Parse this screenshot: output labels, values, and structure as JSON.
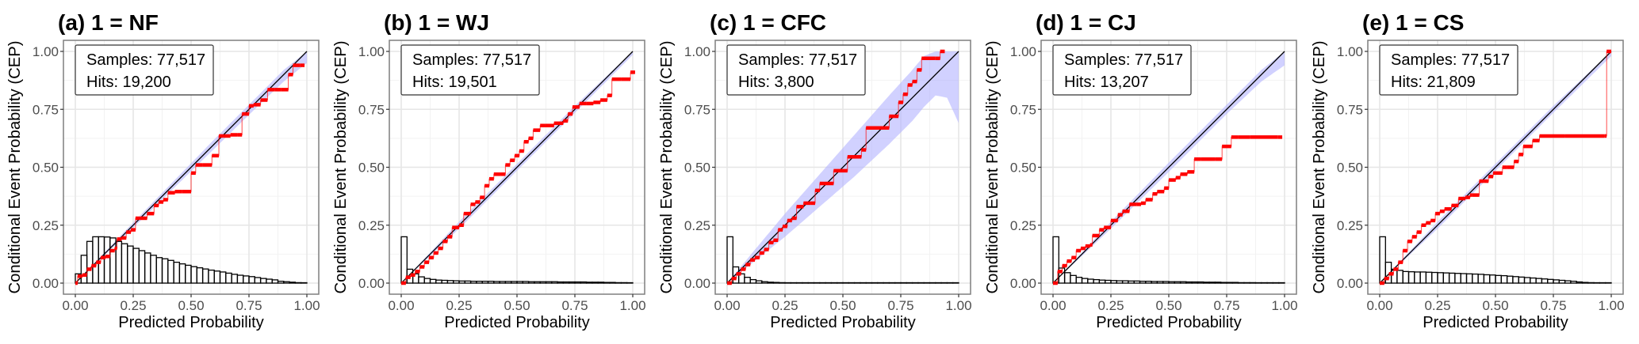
{
  "chart_data": [
    {
      "type": "line",
      "title": "(a) 1 = NF",
      "xlabel": "Predicted Probability",
      "ylabel": "Conditional Event Probability (CEP)",
      "xlim": [
        0,
        1
      ],
      "ylim": [
        0,
        1
      ],
      "xticks": [
        "0.00",
        "0.25",
        "0.50",
        "0.75",
        "1.00"
      ],
      "yticks": [
        "0.00",
        "0.25",
        "0.50",
        "0.75",
        "1.00"
      ],
      "grid": true,
      "legend": {
        "position": "top-left",
        "samples": "Samples: 77,517",
        "hits": "Hits: 19,200"
      },
      "colors": {
        "cep": "#ff0000",
        "band": "#b3b3ff",
        "diagonal": "#000000",
        "hist": "#000000"
      },
      "histogram_bin_width": 0.025,
      "histogram": [
        0.04,
        0.12,
        0.18,
        0.2,
        0.2,
        0.199,
        0.195,
        0.18,
        0.17,
        0.16,
        0.15,
        0.14,
        0.13,
        0.12,
        0.11,
        0.105,
        0.098,
        0.09,
        0.083,
        0.077,
        0.071,
        0.066,
        0.061,
        0.056,
        0.052,
        0.048,
        0.043,
        0.038,
        0.034,
        0.031,
        0.028,
        0.024,
        0.02,
        0.017,
        0.014,
        0.008,
        0.006,
        0.004,
        0.002,
        0.001
      ],
      "band": {
        "x": [
          0,
          0.2,
          0.4,
          0.6,
          0.8,
          0.9,
          1.0
        ],
        "lower": [
          0,
          0.19,
          0.385,
          0.58,
          0.775,
          0.87,
          0.95
        ],
        "upper": [
          0,
          0.21,
          0.415,
          0.62,
          0.82,
          0.92,
          1.0
        ]
      },
      "cep": {
        "x": [
          0.0,
          0.01,
          0.03,
          0.05,
          0.07,
          0.09,
          0.11,
          0.13,
          0.15,
          0.17,
          0.18,
          0.2,
          0.22,
          0.24,
          0.26,
          0.28,
          0.31,
          0.34,
          0.36,
          0.38,
          0.4,
          0.43,
          0.46,
          0.5,
          0.52,
          0.55,
          0.59,
          0.62,
          0.64,
          0.67,
          0.7,
          0.72,
          0.75,
          0.77,
          0.8,
          0.83,
          0.86,
          0.89,
          0.92,
          0.94,
          0.97
        ],
        "y": [
          0.0,
          0.03,
          0.035,
          0.06,
          0.075,
          0.09,
          0.11,
          0.115,
          0.14,
          0.15,
          0.19,
          0.195,
          0.22,
          0.23,
          0.28,
          0.28,
          0.3,
          0.335,
          0.35,
          0.36,
          0.39,
          0.395,
          0.395,
          0.475,
          0.51,
          0.51,
          0.55,
          0.635,
          0.635,
          0.64,
          0.64,
          0.73,
          0.765,
          0.77,
          0.79,
          0.835,
          0.835,
          0.835,
          0.9,
          0.94,
          0.94
        ]
      }
    },
    {
      "type": "line",
      "title": "(b) 1 = WJ",
      "xlabel": "Predicted Probability",
      "ylabel": "Conditional Event Probability (CEP)",
      "xlim": [
        0,
        1
      ],
      "ylim": [
        0,
        1
      ],
      "xticks": [
        "0.00",
        "0.25",
        "0.50",
        "0.75",
        "1.00"
      ],
      "yticks": [
        "0.00",
        "0.25",
        "0.50",
        "0.75",
        "1.00"
      ],
      "grid": true,
      "legend": {
        "position": "top-left",
        "samples": "Samples: 77,517",
        "hits": "Hits: 19,501"
      },
      "colors": {
        "cep": "#ff0000",
        "band": "#b3b3ff",
        "diagonal": "#000000",
        "hist": "#000000"
      },
      "histogram_bin_width": 0.025,
      "histogram": [
        0.2,
        0.06,
        0.04,
        0.027,
        0.02,
        0.016,
        0.013,
        0.012,
        0.011,
        0.01,
        0.009,
        0.009,
        0.008,
        0.008,
        0.008,
        0.008,
        0.007,
        0.007,
        0.007,
        0.007,
        0.007,
        0.007,
        0.006,
        0.006,
        0.006,
        0.006,
        0.006,
        0.005,
        0.005,
        0.005,
        0.005,
        0.005,
        0.004,
        0.004,
        0.004,
        0.003,
        0.003,
        0.002,
        0.002,
        0.001
      ],
      "band": {
        "x": [
          0,
          0.25,
          0.5,
          0.75,
          1.0
        ],
        "lower": [
          0,
          0.235,
          0.485,
          0.735,
          0.985
        ],
        "upper": [
          0,
          0.265,
          0.515,
          0.765,
          1.0
        ]
      },
      "cep": {
        "x": [
          0.0,
          0.02,
          0.04,
          0.06,
          0.08,
          0.1,
          0.12,
          0.14,
          0.16,
          0.18,
          0.2,
          0.22,
          0.25,
          0.27,
          0.3,
          0.32,
          0.34,
          0.36,
          0.38,
          0.4,
          0.43,
          0.45,
          0.47,
          0.49,
          0.51,
          0.53,
          0.55,
          0.57,
          0.6,
          0.62,
          0.66,
          0.7,
          0.72,
          0.74,
          0.77,
          0.8,
          0.83,
          0.86,
          0.89,
          0.91,
          0.95,
          0.99
        ],
        "y": [
          0.0,
          0.025,
          0.035,
          0.05,
          0.07,
          0.09,
          0.11,
          0.13,
          0.15,
          0.18,
          0.2,
          0.24,
          0.25,
          0.3,
          0.34,
          0.35,
          0.37,
          0.42,
          0.45,
          0.47,
          0.47,
          0.51,
          0.53,
          0.55,
          0.57,
          0.61,
          0.625,
          0.66,
          0.68,
          0.68,
          0.69,
          0.7,
          0.73,
          0.76,
          0.775,
          0.775,
          0.78,
          0.79,
          0.81,
          0.88,
          0.88,
          0.91
        ]
      }
    },
    {
      "type": "line",
      "title": "(c) 1 = CFC",
      "xlabel": "Predicted Probability",
      "ylabel": "Conditional Event Probability (CEP)",
      "xlim": [
        0,
        1
      ],
      "ylim": [
        0,
        1
      ],
      "xticks": [
        "0.00",
        "0.25",
        "0.50",
        "0.75",
        "1.00"
      ],
      "yticks": [
        "0.00",
        "0.25",
        "0.50",
        "0.75",
        "1.00"
      ],
      "grid": true,
      "legend": {
        "position": "top-left",
        "samples": "Samples: 77,517",
        "hits": "Hits: 3,800"
      },
      "colors": {
        "cep": "#ff0000",
        "band": "#b3b3ff",
        "diagonal": "#000000",
        "hist": "#000000"
      },
      "histogram_bin_width": 0.025,
      "histogram": [
        0.2,
        0.07,
        0.04,
        0.025,
        0.015,
        0.01,
        0.006,
        0.004,
        0.003,
        0.002,
        0.0015,
        0.001,
        0.001,
        0.0008,
        0.0006,
        0.0005,
        0.0004,
        0.0003,
        0.0003,
        0.0002,
        0.0002,
        0.0002,
        0.0001,
        0.0001,
        0.0001,
        0.0001,
        0.0001,
        0.0001,
        0.0001,
        0.0001,
        0.0001,
        0.0001,
        0.0001,
        0.0001,
        0.0001,
        0.0001,
        0.0001,
        0.0001,
        0.0001,
        0.0001
      ],
      "band": {
        "x": [
          0,
          0.1,
          0.25,
          0.4,
          0.55,
          0.7,
          0.8,
          0.85,
          0.9,
          0.95,
          1.0
        ],
        "lower": [
          0,
          0.08,
          0.2,
          0.33,
          0.46,
          0.6,
          0.7,
          0.76,
          0.81,
          0.8,
          0.69
        ],
        "upper": [
          0,
          0.12,
          0.3,
          0.47,
          0.64,
          0.81,
          0.92,
          0.98,
          1.0,
          1.0,
          1.0
        ]
      },
      "cep": {
        "x": [
          0.0,
          0.02,
          0.04,
          0.06,
          0.08,
          0.1,
          0.12,
          0.14,
          0.16,
          0.18,
          0.2,
          0.22,
          0.24,
          0.26,
          0.28,
          0.3,
          0.33,
          0.36,
          0.38,
          0.4,
          0.46,
          0.52,
          0.56,
          0.58,
          0.6,
          0.7,
          0.72,
          0.74,
          0.76,
          0.78,
          0.8,
          0.82,
          0.84,
          0.9,
          0.92
        ],
        "y": [
          0.0,
          0.02,
          0.04,
          0.06,
          0.08,
          0.1,
          0.11,
          0.13,
          0.145,
          0.175,
          0.185,
          0.23,
          0.245,
          0.27,
          0.28,
          0.33,
          0.345,
          0.345,
          0.4,
          0.43,
          0.485,
          0.545,
          0.545,
          0.575,
          0.67,
          0.72,
          0.72,
          0.78,
          0.815,
          0.855,
          0.87,
          0.92,
          0.97,
          0.97,
          1.0
        ]
      }
    },
    {
      "type": "line",
      "title": "(d) 1 = CJ",
      "xlabel": "Predicted Probability",
      "ylabel": "Conditional Event Probability (CEP)",
      "xlim": [
        0,
        1
      ],
      "ylim": [
        0,
        1
      ],
      "xticks": [
        "0.00",
        "0.25",
        "0.50",
        "0.75",
        "1.00"
      ],
      "yticks": [
        "0.00",
        "0.25",
        "0.50",
        "0.75",
        "1.00"
      ],
      "grid": true,
      "legend": {
        "position": "top-left",
        "samples": "Samples: 77,517",
        "hits": "Hits: 13,207"
      },
      "colors": {
        "cep": "#ff0000",
        "band": "#b3b3ff",
        "diagonal": "#000000",
        "hist": "#000000"
      },
      "histogram_bin_width": 0.025,
      "histogram": [
        0.2,
        0.065,
        0.045,
        0.033,
        0.025,
        0.02,
        0.017,
        0.015,
        0.013,
        0.012,
        0.011,
        0.01,
        0.01,
        0.009,
        0.009,
        0.008,
        0.008,
        0.007,
        0.007,
        0.007,
        0.006,
        0.006,
        0.006,
        0.005,
        0.005,
        0.005,
        0.004,
        0.004,
        0.004,
        0.003,
        0.003,
        0.003,
        0.002,
        0.002,
        0.002,
        0.001,
        0.001,
        0.001,
        0.001,
        0.001
      ],
      "band": {
        "x": [
          0,
          0.25,
          0.5,
          0.75,
          0.9,
          1.0
        ],
        "lower": [
          0,
          0.235,
          0.48,
          0.73,
          0.87,
          0.94
        ],
        "upper": [
          0,
          0.265,
          0.52,
          0.77,
          0.92,
          1.0
        ]
      },
      "cep": {
        "x": [
          0.0,
          0.02,
          0.04,
          0.06,
          0.08,
          0.1,
          0.12,
          0.14,
          0.16,
          0.17,
          0.2,
          0.22,
          0.25,
          0.28,
          0.3,
          0.33,
          0.36,
          0.38,
          0.4,
          0.43,
          0.45,
          0.48,
          0.5,
          0.53,
          0.55,
          0.58,
          0.61,
          0.64,
          0.7,
          0.73,
          0.77,
          0.8,
          0.85,
          0.97
        ],
        "y": [
          0.0,
          0.05,
          0.075,
          0.095,
          0.11,
          0.14,
          0.15,
          0.16,
          0.165,
          0.205,
          0.23,
          0.24,
          0.27,
          0.295,
          0.31,
          0.34,
          0.34,
          0.345,
          0.36,
          0.385,
          0.395,
          0.41,
          0.445,
          0.455,
          0.47,
          0.48,
          0.535,
          0.535,
          0.535,
          0.59,
          0.63,
          0.63,
          0.63,
          0.63
        ]
      }
    },
    {
      "type": "line",
      "title": "(e) 1 = CS",
      "xlabel": "Predicted Probability",
      "ylabel": "Conditional Event Probability (CEP)",
      "xlim": [
        0,
        1
      ],
      "ylim": [
        0,
        1
      ],
      "xticks": [
        "0.00",
        "0.25",
        "0.50",
        "0.75",
        "1.00"
      ],
      "yticks": [
        "0.00",
        "0.25",
        "0.50",
        "0.75",
        "1.00"
      ],
      "grid": true,
      "legend": {
        "position": "top-left",
        "samples": "Samples: 77,517",
        "hits": "Hits: 21,809"
      },
      "colors": {
        "cep": "#ff0000",
        "band": "#b3b3ff",
        "diagonal": "#000000",
        "hist": "#000000"
      },
      "histogram_bin_width": 0.025,
      "histogram": [
        0.2,
        0.09,
        0.06,
        0.055,
        0.05,
        0.049,
        0.048,
        0.048,
        0.047,
        0.046,
        0.045,
        0.044,
        0.043,
        0.042,
        0.041,
        0.04,
        0.039,
        0.038,
        0.036,
        0.035,
        0.033,
        0.032,
        0.03,
        0.028,
        0.026,
        0.024,
        0.022,
        0.02,
        0.018,
        0.016,
        0.014,
        0.012,
        0.01,
        0.008,
        0.005,
        0.003,
        0.002,
        0.001,
        0.001,
        0.001
      ],
      "band": {
        "x": [
          0,
          0.25,
          0.5,
          0.75,
          1.0
        ],
        "lower": [
          0,
          0.235,
          0.485,
          0.735,
          0.98
        ],
        "upper": [
          0,
          0.265,
          0.515,
          0.765,
          1.0
        ]
      },
      "cep": {
        "x": [
          0.0,
          0.02,
          0.04,
          0.06,
          0.08,
          0.1,
          0.12,
          0.14,
          0.16,
          0.18,
          0.2,
          0.22,
          0.24,
          0.26,
          0.28,
          0.31,
          0.34,
          0.37,
          0.39,
          0.4,
          0.43,
          0.45,
          0.47,
          0.49,
          0.53,
          0.55,
          0.58,
          0.6,
          0.62,
          0.66,
          0.69,
          0.8,
          0.97,
          0.98
        ],
        "y": [
          0.0,
          0.02,
          0.04,
          0.06,
          0.09,
          0.14,
          0.18,
          0.2,
          0.22,
          0.25,
          0.26,
          0.27,
          0.3,
          0.31,
          0.32,
          0.335,
          0.365,
          0.37,
          0.38,
          0.38,
          0.44,
          0.44,
          0.46,
          0.475,
          0.5,
          0.5,
          0.525,
          0.555,
          0.59,
          0.615,
          0.635,
          0.635,
          0.635,
          1.0
        ]
      }
    }
  ]
}
